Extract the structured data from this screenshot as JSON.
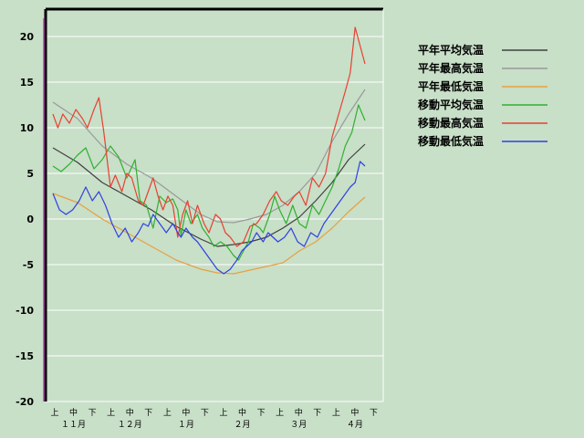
{
  "chart_data": {
    "type": "line",
    "title": "",
    "xlabel": "",
    "ylabel": "",
    "ylim": [
      -20,
      23
    ],
    "yticks": [
      20,
      15,
      10,
      5,
      0,
      -5,
      -10,
      -15,
      -20
    ],
    "grid": true,
    "legend_position": "right",
    "x_days": 182,
    "x_period_labels": [
      "上",
      "中",
      "下",
      "上",
      "中",
      "下",
      "上",
      "中",
      "下",
      "上",
      "中",
      "下",
      "上",
      "中",
      "下",
      "上",
      "中",
      "下"
    ],
    "x_month_labels": [
      "１１月",
      "１２月",
      "１月",
      "２月",
      "３月",
      "４月"
    ],
    "series": [
      {
        "name": "平年平均気温",
        "color": "#404040",
        "points": [
          [
            0,
            7.8
          ],
          [
            15,
            6.2
          ],
          [
            30,
            4.0
          ],
          [
            45,
            2.5
          ],
          [
            60,
            1.0
          ],
          [
            75,
            -0.8
          ],
          [
            90,
            -2.2
          ],
          [
            100,
            -3.0
          ],
          [
            110,
            -2.8
          ],
          [
            120,
            -2.5
          ],
          [
            130,
            -2.0
          ],
          [
            140,
            -1.0
          ],
          [
            150,
            0.2
          ],
          [
            160,
            2.0
          ],
          [
            170,
            4.0
          ],
          [
            180,
            6.5
          ],
          [
            190,
            8.2
          ]
        ]
      },
      {
        "name": "平年最高気温",
        "color": "#999999",
        "points": [
          [
            0,
            12.8
          ],
          [
            15,
            11.0
          ],
          [
            30,
            8.0
          ],
          [
            45,
            6.0
          ],
          [
            60,
            4.5
          ],
          [
            75,
            2.5
          ],
          [
            90,
            0.5
          ],
          [
            100,
            -0.3
          ],
          [
            110,
            -0.4
          ],
          [
            120,
            0.0
          ],
          [
            130,
            0.5
          ],
          [
            140,
            1.5
          ],
          [
            150,
            3.0
          ],
          [
            160,
            5.0
          ],
          [
            170,
            8.5
          ],
          [
            180,
            11.5
          ],
          [
            190,
            14.2
          ]
        ]
      },
      {
        "name": "平年最低気温",
        "color": "#e8a040",
        "points": [
          [
            0,
            2.8
          ],
          [
            15,
            1.8
          ],
          [
            30,
            0.0
          ],
          [
            45,
            -1.5
          ],
          [
            60,
            -3.0
          ],
          [
            75,
            -4.5
          ],
          [
            90,
            -5.5
          ],
          [
            100,
            -5.9
          ],
          [
            110,
            -6.0
          ],
          [
            120,
            -5.6
          ],
          [
            130,
            -5.2
          ],
          [
            140,
            -4.8
          ],
          [
            150,
            -3.5
          ],
          [
            160,
            -2.5
          ],
          [
            170,
            -1.0
          ],
          [
            180,
            0.8
          ],
          [
            190,
            2.4
          ]
        ]
      },
      {
        "name": "移動平均気温",
        "color": "#30b030",
        "points": [
          [
            0,
            5.8
          ],
          [
            5,
            5.2
          ],
          [
            10,
            6.0
          ],
          [
            15,
            7.0
          ],
          [
            20,
            7.8
          ],
          [
            25,
            5.5
          ],
          [
            30,
            6.5
          ],
          [
            35,
            8.0
          ],
          [
            40,
            6.8
          ],
          [
            45,
            4.5
          ],
          [
            50,
            6.5
          ],
          [
            53,
            2.0
          ],
          [
            57,
            1.5
          ],
          [
            61,
            -1.0
          ],
          [
            65,
            2.5
          ],
          [
            69,
            1.8
          ],
          [
            73,
            2.2
          ],
          [
            76,
            1.0
          ],
          [
            78,
            -1.8
          ],
          [
            81,
            1.0
          ],
          [
            84,
            -0.5
          ],
          [
            88,
            0.5
          ],
          [
            91,
            -1.0
          ],
          [
            95,
            -2.0
          ],
          [
            98,
            -3.0
          ],
          [
            102,
            -2.5
          ],
          [
            106,
            -3.0
          ],
          [
            110,
            -4.0
          ],
          [
            113,
            -4.5
          ],
          [
            116,
            -3.5
          ],
          [
            119,
            -2.5
          ],
          [
            122,
            -0.5
          ],
          [
            126,
            -1.0
          ],
          [
            128,
            -1.5
          ],
          [
            132,
            0.5
          ],
          [
            135,
            2.5
          ],
          [
            138,
            1.0
          ],
          [
            142,
            -0.5
          ],
          [
            146,
            1.5
          ],
          [
            150,
            -0.5
          ],
          [
            154,
            -1.0
          ],
          [
            158,
            1.5
          ],
          [
            162,
            0.5
          ],
          [
            166,
            2.0
          ],
          [
            170,
            3.5
          ],
          [
            174,
            5.5
          ],
          [
            178,
            8.0
          ],
          [
            182,
            9.5
          ],
          [
            186,
            12.5
          ],
          [
            190,
            10.8
          ]
        ]
      },
      {
        "name": "移動最高気温",
        "color": "#e84030",
        "points": [
          [
            0,
            11.5
          ],
          [
            3,
            10.0
          ],
          [
            6,
            11.5
          ],
          [
            10,
            10.5
          ],
          [
            14,
            12.0
          ],
          [
            18,
            11.0
          ],
          [
            21,
            10.0
          ],
          [
            25,
            12.0
          ],
          [
            28,
            13.3
          ],
          [
            31,
            9.5
          ],
          [
            35,
            3.5
          ],
          [
            38,
            4.8
          ],
          [
            42,
            3.0
          ],
          [
            45,
            5.0
          ],
          [
            48,
            4.5
          ],
          [
            52,
            2.0
          ],
          [
            55,
            1.5
          ],
          [
            58,
            3.0
          ],
          [
            61,
            4.5
          ],
          [
            64,
            2.5
          ],
          [
            67,
            1.0
          ],
          [
            70,
            2.5
          ],
          [
            73,
            1.5
          ],
          [
            76,
            -2.0
          ],
          [
            79,
            0.5
          ],
          [
            82,
            2.0
          ],
          [
            85,
            -0.5
          ],
          [
            88,
            1.5
          ],
          [
            92,
            -0.5
          ],
          [
            95,
            -1.5
          ],
          [
            99,
            0.5
          ],
          [
            102,
            0.0
          ],
          [
            105,
            -1.5
          ],
          [
            108,
            -2.0
          ],
          [
            112,
            -3.0
          ],
          [
            116,
            -2.5
          ],
          [
            120,
            -0.8
          ],
          [
            124,
            -0.5
          ],
          [
            128,
            0.5
          ],
          [
            132,
            2.0
          ],
          [
            136,
            3.0
          ],
          [
            139,
            2.0
          ],
          [
            143,
            1.5
          ],
          [
            147,
            2.5
          ],
          [
            150,
            3.0
          ],
          [
            154,
            1.5
          ],
          [
            158,
            4.5
          ],
          [
            162,
            3.5
          ],
          [
            166,
            5.0
          ],
          [
            170,
            9.0
          ],
          [
            174,
            11.5
          ],
          [
            178,
            14.0
          ],
          [
            181,
            16.0
          ],
          [
            184,
            21.0
          ],
          [
            187,
            19.0
          ],
          [
            190,
            17.0
          ]
        ]
      },
      {
        "name": "移動最低気温",
        "color": "#3040e0",
        "points": [
          [
            0,
            2.8
          ],
          [
            4,
            1.0
          ],
          [
            8,
            0.5
          ],
          [
            12,
            1.0
          ],
          [
            16,
            2.0
          ],
          [
            20,
            3.5
          ],
          [
            24,
            2.0
          ],
          [
            28,
            3.0
          ],
          [
            32,
            1.5
          ],
          [
            36,
            -0.5
          ],
          [
            40,
            -2.0
          ],
          [
            44,
            -1.0
          ],
          [
            48,
            -2.5
          ],
          [
            52,
            -1.5
          ],
          [
            55,
            -0.5
          ],
          [
            58,
            -0.8
          ],
          [
            61,
            0.5
          ],
          [
            65,
            -0.5
          ],
          [
            69,
            -1.5
          ],
          [
            73,
            -0.5
          ],
          [
            76,
            -1.5
          ],
          [
            78,
            -2.0
          ],
          [
            81,
            -1.0
          ],
          [
            85,
            -2.0
          ],
          [
            88,
            -2.5
          ],
          [
            92,
            -3.5
          ],
          [
            96,
            -4.5
          ],
          [
            100,
            -5.5
          ],
          [
            104,
            -6.0
          ],
          [
            108,
            -5.5
          ],
          [
            112,
            -4.5
          ],
          [
            115,
            -3.5
          ],
          [
            118,
            -3.0
          ],
          [
            121,
            -2.5
          ],
          [
            124,
            -1.5
          ],
          [
            128,
            -2.5
          ],
          [
            131,
            -1.5
          ],
          [
            134,
            -2.0
          ],
          [
            137,
            -2.5
          ],
          [
            141,
            -2.0
          ],
          [
            145,
            -1.0
          ],
          [
            149,
            -2.5
          ],
          [
            153,
            -3.0
          ],
          [
            157,
            -1.5
          ],
          [
            161,
            -2.0
          ],
          [
            165,
            -0.5
          ],
          [
            169,
            0.5
          ],
          [
            173,
            1.5
          ],
          [
            177,
            2.5
          ],
          [
            181,
            3.5
          ],
          [
            184,
            4.0
          ],
          [
            187,
            6.3
          ],
          [
            190,
            5.8
          ]
        ]
      }
    ]
  }
}
